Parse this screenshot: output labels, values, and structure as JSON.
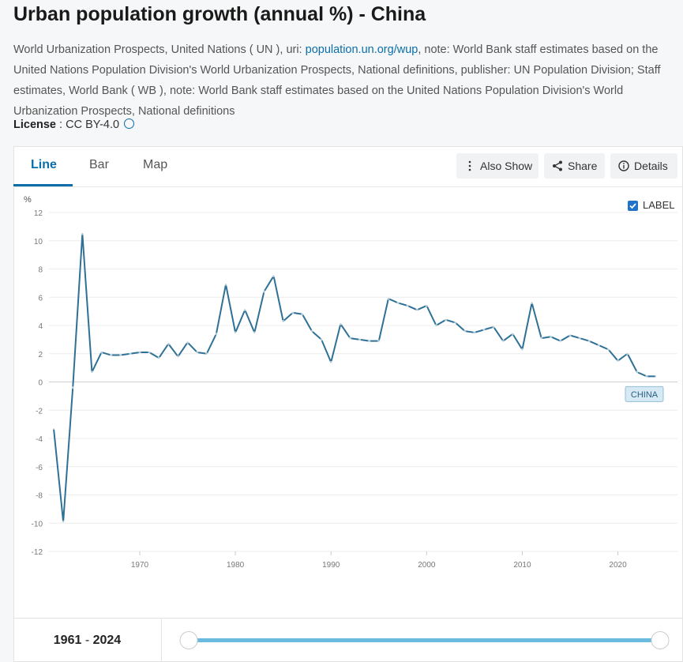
{
  "title": "Urban population growth (annual %) - China",
  "source": {
    "text_before": "World Urbanization Prospects, United Nations ( UN ), uri: ",
    "link": "population.un.org/wup",
    "text_after": ", note: World Bank staff estimates based on the United Nations Population Division's World Urbanization Prospects, National definitions, publisher: UN Population Division; Staff estimates, World Bank ( WB ), note: World Bank staff estimates based on the United Nations Population Division's World Urbanization Prospects, National definitions"
  },
  "license": {
    "label": "License",
    "separator": ":",
    "value": "CC BY-4.0"
  },
  "tabs": [
    "Line",
    "Bar",
    "Map"
  ],
  "buttons": [
    "Also Show",
    "Share",
    "Details"
  ],
  "checkbox_label": "LABEL",
  "range": {
    "start": "1961",
    "separator": "-",
    "end": "2024"
  },
  "chart_data": {
    "type": "line",
    "y_unit": "%",
    "x": [
      1961,
      1962,
      1963,
      1964,
      1965,
      1966,
      1967,
      1968,
      1969,
      1970,
      1971,
      1972,
      1973,
      1974,
      1975,
      1976,
      1977,
      1978,
      1979,
      1980,
      1981,
      1982,
      1983,
      1984,
      1985,
      1986,
      1987,
      1988,
      1989,
      1990,
      1991,
      1992,
      1993,
      1994,
      1995,
      1996,
      1997,
      1998,
      1999,
      2000,
      2001,
      2002,
      2003,
      2004,
      2005,
      2006,
      2007,
      2008,
      2009,
      2010,
      2011,
      2012,
      2013,
      2014,
      2015,
      2016,
      2017,
      2018,
      2019,
      2020,
      2021,
      2022,
      2023,
      2024
    ],
    "series": [
      {
        "name": "CHINA",
        "color": "#2f7196",
        "values": [
          -3.3,
          -9.9,
          -0.4,
          10.5,
          0.7,
          2.1,
          1.9,
          1.9,
          2.0,
          2.1,
          2.1,
          1.7,
          2.7,
          1.8,
          2.8,
          2.1,
          2.0,
          3.4,
          6.9,
          3.5,
          5.1,
          3.5,
          6.4,
          7.5,
          4.3,
          4.9,
          4.8,
          3.6,
          3.0,
          1.4,
          4.1,
          3.1,
          3.0,
          2.9,
          2.9,
          5.9,
          5.6,
          5.4,
          5.1,
          5.4,
          4.0,
          4.4,
          4.2,
          3.6,
          3.5,
          3.7,
          3.9,
          2.9,
          3.4,
          2.3,
          5.6,
          3.1,
          3.2,
          2.9,
          3.3,
          3.1,
          2.9,
          2.6,
          2.3,
          1.5,
          2.0,
          0.7,
          0.4,
          0.4
        ]
      }
    ],
    "xlim": [
      1961,
      2024
    ],
    "xticks": [
      1970,
      1980,
      1990,
      2000,
      2010,
      2020
    ],
    "ylim": [
      -12,
      12
    ],
    "yticks": [
      -12,
      -10,
      -8,
      -6,
      -4,
      -2,
      0,
      2,
      4,
      6,
      8,
      10,
      12
    ],
    "grid": true
  }
}
